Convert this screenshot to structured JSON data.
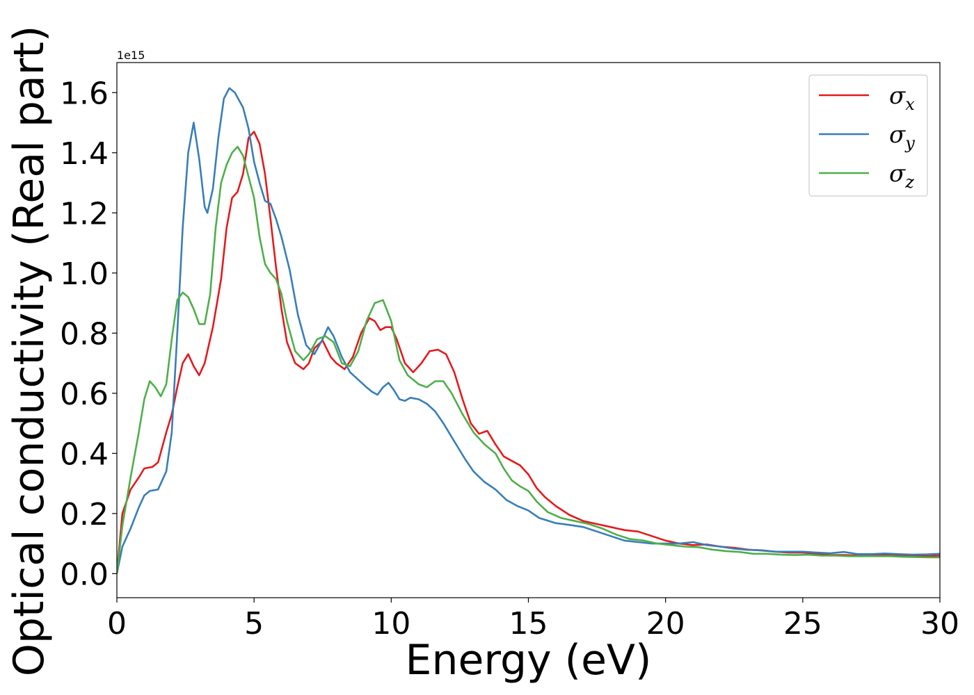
{
  "chart_data": {
    "type": "line",
    "xlabel": "Energy (eV)",
    "ylabel": "Optical conductivity (Real part)",
    "y_offset_label": "1e15",
    "xlim": [
      0,
      30
    ],
    "ylim": [
      -0.08,
      1.7
    ],
    "x_ticks": [
      0,
      5,
      10,
      15,
      20,
      25,
      30
    ],
    "x_tick_labels": [
      "0",
      "5",
      "10",
      "15",
      "20",
      "25",
      "30"
    ],
    "y_ticks": [
      0.0,
      0.2,
      0.4,
      0.6,
      0.8,
      1.0,
      1.2,
      1.4,
      1.6
    ],
    "y_tick_labels": [
      "0.0",
      "0.2",
      "0.4",
      "0.6",
      "0.8",
      "1.0",
      "1.2",
      "1.4",
      "1.6"
    ],
    "grid": false,
    "legend_placement": "top-right",
    "series": [
      {
        "name": "σx",
        "legend_symbol": "σ",
        "legend_subscript": "x",
        "color": "#e41a1c",
        "points": [
          [
            0,
            0
          ],
          [
            0.2,
            0.2
          ],
          [
            0.5,
            0.28
          ],
          [
            0.8,
            0.32
          ],
          [
            1.0,
            0.35
          ],
          [
            1.3,
            0.355
          ],
          [
            1.5,
            0.37
          ],
          [
            1.8,
            0.47
          ],
          [
            2.0,
            0.53
          ],
          [
            2.2,
            0.62
          ],
          [
            2.4,
            0.7
          ],
          [
            2.6,
            0.73
          ],
          [
            2.8,
            0.69
          ],
          [
            3.0,
            0.66
          ],
          [
            3.2,
            0.7
          ],
          [
            3.5,
            0.82
          ],
          [
            3.8,
            0.98
          ],
          [
            4.0,
            1.15
          ],
          [
            4.2,
            1.25
          ],
          [
            4.4,
            1.27
          ],
          [
            4.6,
            1.33
          ],
          [
            4.8,
            1.45
          ],
          [
            5.0,
            1.47
          ],
          [
            5.2,
            1.43
          ],
          [
            5.4,
            1.33
          ],
          [
            5.6,
            1.18
          ],
          [
            5.8,
            1.02
          ],
          [
            6.0,
            0.88
          ],
          [
            6.2,
            0.77
          ],
          [
            6.5,
            0.7
          ],
          [
            6.8,
            0.68
          ],
          [
            7.0,
            0.7
          ],
          [
            7.2,
            0.75
          ],
          [
            7.5,
            0.775
          ],
          [
            7.8,
            0.72
          ],
          [
            8.0,
            0.7
          ],
          [
            8.3,
            0.68
          ],
          [
            8.6,
            0.72
          ],
          [
            8.9,
            0.8
          ],
          [
            9.2,
            0.85
          ],
          [
            9.4,
            0.84
          ],
          [
            9.6,
            0.81
          ],
          [
            9.8,
            0.82
          ],
          [
            10.0,
            0.82
          ],
          [
            10.2,
            0.78
          ],
          [
            10.5,
            0.7
          ],
          [
            10.8,
            0.67
          ],
          [
            11.1,
            0.7
          ],
          [
            11.4,
            0.74
          ],
          [
            11.7,
            0.745
          ],
          [
            12.0,
            0.73
          ],
          [
            12.3,
            0.67
          ],
          [
            12.6,
            0.58
          ],
          [
            12.9,
            0.5
          ],
          [
            13.2,
            0.465
          ],
          [
            13.5,
            0.475
          ],
          [
            13.8,
            0.43
          ],
          [
            14.1,
            0.39
          ],
          [
            14.4,
            0.375
          ],
          [
            14.7,
            0.36
          ],
          [
            15.0,
            0.33
          ],
          [
            15.3,
            0.285
          ],
          [
            15.6,
            0.255
          ],
          [
            16.0,
            0.225
          ],
          [
            16.5,
            0.195
          ],
          [
            17.0,
            0.175
          ],
          [
            17.5,
            0.165
          ],
          [
            18.0,
            0.155
          ],
          [
            18.5,
            0.145
          ],
          [
            19.0,
            0.14
          ],
          [
            19.5,
            0.125
          ],
          [
            20.0,
            0.11
          ],
          [
            20.5,
            0.1
          ],
          [
            21.0,
            0.095
          ],
          [
            21.5,
            0.097
          ],
          [
            22.0,
            0.09
          ],
          [
            22.5,
            0.086
          ],
          [
            23.0,
            0.08
          ],
          [
            23.5,
            0.077
          ],
          [
            24.0,
            0.073
          ],
          [
            24.5,
            0.07
          ],
          [
            25.0,
            0.07
          ],
          [
            25.5,
            0.066
          ],
          [
            26.0,
            0.062
          ],
          [
            26.5,
            0.062
          ],
          [
            27.0,
            0.06
          ],
          [
            27.5,
            0.06
          ],
          [
            28.0,
            0.062
          ],
          [
            28.5,
            0.06
          ],
          [
            29.0,
            0.058
          ],
          [
            29.5,
            0.058
          ],
          [
            30.0,
            0.06
          ]
        ]
      },
      {
        "name": "σy",
        "legend_symbol": "σ",
        "legend_subscript": "y",
        "color": "#377eb8",
        "points": [
          [
            0,
            0
          ],
          [
            0.2,
            0.09
          ],
          [
            0.5,
            0.15
          ],
          [
            0.8,
            0.22
          ],
          [
            1.0,
            0.26
          ],
          [
            1.2,
            0.275
          ],
          [
            1.5,
            0.28
          ],
          [
            1.8,
            0.34
          ],
          [
            2.0,
            0.47
          ],
          [
            2.2,
            0.8
          ],
          [
            2.4,
            1.15
          ],
          [
            2.6,
            1.4
          ],
          [
            2.8,
            1.5
          ],
          [
            3.0,
            1.38
          ],
          [
            3.2,
            1.22
          ],
          [
            3.3,
            1.2
          ],
          [
            3.5,
            1.28
          ],
          [
            3.7,
            1.45
          ],
          [
            3.9,
            1.58
          ],
          [
            4.1,
            1.615
          ],
          [
            4.3,
            1.6
          ],
          [
            4.6,
            1.55
          ],
          [
            4.8,
            1.48
          ],
          [
            5.0,
            1.37
          ],
          [
            5.2,
            1.3
          ],
          [
            5.4,
            1.24
          ],
          [
            5.6,
            1.23
          ],
          [
            5.8,
            1.18
          ],
          [
            6.0,
            1.12
          ],
          [
            6.3,
            1.01
          ],
          [
            6.6,
            0.86
          ],
          [
            6.9,
            0.76
          ],
          [
            7.2,
            0.73
          ],
          [
            7.5,
            0.78
          ],
          [
            7.7,
            0.82
          ],
          [
            7.9,
            0.79
          ],
          [
            8.2,
            0.72
          ],
          [
            8.5,
            0.67
          ],
          [
            8.8,
            0.645
          ],
          [
            9.1,
            0.62
          ],
          [
            9.3,
            0.605
          ],
          [
            9.5,
            0.595
          ],
          [
            9.7,
            0.62
          ],
          [
            9.9,
            0.635
          ],
          [
            10.1,
            0.61
          ],
          [
            10.3,
            0.58
          ],
          [
            10.5,
            0.575
          ],
          [
            10.7,
            0.585
          ],
          [
            11.0,
            0.58
          ],
          [
            11.3,
            0.565
          ],
          [
            11.6,
            0.54
          ],
          [
            11.9,
            0.5
          ],
          [
            12.3,
            0.44
          ],
          [
            12.7,
            0.38
          ],
          [
            13.0,
            0.34
          ],
          [
            13.4,
            0.305
          ],
          [
            13.8,
            0.28
          ],
          [
            14.2,
            0.245
          ],
          [
            14.6,
            0.225
          ],
          [
            15.0,
            0.21
          ],
          [
            15.4,
            0.185
          ],
          [
            16.0,
            0.168
          ],
          [
            16.5,
            0.162
          ],
          [
            17.0,
            0.155
          ],
          [
            17.5,
            0.14
          ],
          [
            18.0,
            0.125
          ],
          [
            18.5,
            0.11
          ],
          [
            19.0,
            0.105
          ],
          [
            19.5,
            0.1
          ],
          [
            20.0,
            0.1
          ],
          [
            20.5,
            0.1
          ],
          [
            21.0,
            0.105
          ],
          [
            21.5,
            0.095
          ],
          [
            22.0,
            0.09
          ],
          [
            22.5,
            0.083
          ],
          [
            23.0,
            0.079
          ],
          [
            23.5,
            0.078
          ],
          [
            24.0,
            0.073
          ],
          [
            24.5,
            0.073
          ],
          [
            25.0,
            0.073
          ],
          [
            25.5,
            0.07
          ],
          [
            26.0,
            0.068
          ],
          [
            26.5,
            0.072
          ],
          [
            27.0,
            0.065
          ],
          [
            27.5,
            0.065
          ],
          [
            28.0,
            0.067
          ],
          [
            28.5,
            0.065
          ],
          [
            29.0,
            0.063
          ],
          [
            29.5,
            0.064
          ],
          [
            30.0,
            0.066
          ]
        ]
      },
      {
        "name": "σz",
        "legend_symbol": "σ",
        "legend_subscript": "z",
        "color": "#4daf4a",
        "points": [
          [
            0,
            0
          ],
          [
            0.2,
            0.16
          ],
          [
            0.5,
            0.32
          ],
          [
            0.8,
            0.47
          ],
          [
            1.0,
            0.58
          ],
          [
            1.2,
            0.64
          ],
          [
            1.4,
            0.62
          ],
          [
            1.6,
            0.59
          ],
          [
            1.8,
            0.63
          ],
          [
            2.0,
            0.78
          ],
          [
            2.2,
            0.91
          ],
          [
            2.4,
            0.935
          ],
          [
            2.6,
            0.92
          ],
          [
            2.8,
            0.88
          ],
          [
            3.0,
            0.83
          ],
          [
            3.2,
            0.83
          ],
          [
            3.4,
            0.93
          ],
          [
            3.6,
            1.15
          ],
          [
            3.8,
            1.3
          ],
          [
            4.0,
            1.36
          ],
          [
            4.2,
            1.4
          ],
          [
            4.4,
            1.42
          ],
          [
            4.6,
            1.39
          ],
          [
            4.8,
            1.32
          ],
          [
            5.0,
            1.25
          ],
          [
            5.2,
            1.12
          ],
          [
            5.4,
            1.03
          ],
          [
            5.6,
            1.0
          ],
          [
            5.8,
            0.98
          ],
          [
            6.0,
            0.93
          ],
          [
            6.2,
            0.84
          ],
          [
            6.5,
            0.74
          ],
          [
            6.8,
            0.71
          ],
          [
            7.0,
            0.73
          ],
          [
            7.3,
            0.78
          ],
          [
            7.6,
            0.79
          ],
          [
            7.9,
            0.77
          ],
          [
            8.2,
            0.7
          ],
          [
            8.5,
            0.69
          ],
          [
            8.8,
            0.74
          ],
          [
            9.1,
            0.84
          ],
          [
            9.4,
            0.9
          ],
          [
            9.7,
            0.91
          ],
          [
            10.0,
            0.84
          ],
          [
            10.3,
            0.71
          ],
          [
            10.6,
            0.66
          ],
          [
            11.0,
            0.63
          ],
          [
            11.3,
            0.62
          ],
          [
            11.6,
            0.64
          ],
          [
            11.9,
            0.64
          ],
          [
            12.2,
            0.6
          ],
          [
            12.6,
            0.53
          ],
          [
            13.0,
            0.47
          ],
          [
            13.4,
            0.43
          ],
          [
            13.8,
            0.4
          ],
          [
            14.1,
            0.35
          ],
          [
            14.4,
            0.31
          ],
          [
            14.7,
            0.29
          ],
          [
            15.0,
            0.275
          ],
          [
            15.3,
            0.24
          ],
          [
            15.7,
            0.205
          ],
          [
            16.2,
            0.185
          ],
          [
            16.7,
            0.175
          ],
          [
            17.2,
            0.165
          ],
          [
            17.7,
            0.15
          ],
          [
            18.2,
            0.13
          ],
          [
            18.7,
            0.115
          ],
          [
            19.2,
            0.11
          ],
          [
            19.7,
            0.1
          ],
          [
            20.2,
            0.095
          ],
          [
            20.7,
            0.09
          ],
          [
            21.2,
            0.088
          ],
          [
            21.7,
            0.08
          ],
          [
            22.2,
            0.075
          ],
          [
            22.7,
            0.072
          ],
          [
            23.2,
            0.066
          ],
          [
            23.7,
            0.066
          ],
          [
            24.2,
            0.063
          ],
          [
            24.7,
            0.062
          ],
          [
            25.2,
            0.063
          ],
          [
            25.7,
            0.06
          ],
          [
            26.2,
            0.06
          ],
          [
            26.7,
            0.058
          ],
          [
            27.2,
            0.058
          ],
          [
            27.7,
            0.058
          ],
          [
            28.2,
            0.058
          ],
          [
            28.7,
            0.056
          ],
          [
            29.2,
            0.055
          ],
          [
            29.7,
            0.054
          ],
          [
            30.0,
            0.054
          ]
        ]
      }
    ]
  }
}
